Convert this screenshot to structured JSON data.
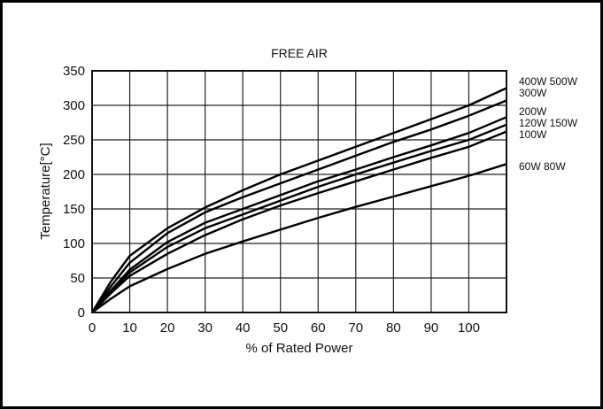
{
  "chart_data": {
    "type": "line",
    "title": "FREE AIR",
    "xlabel": "% of Rated Power",
    "ylabel": "Temperature[°C]",
    "xlim": [
      0,
      110
    ],
    "ylim": [
      0,
      350
    ],
    "x_ticks": [
      "0",
      "10",
      "20",
      "30",
      "40",
      "50",
      "60",
      "70",
      "80",
      "90",
      "100"
    ],
    "y_ticks": [
      "0",
      "50",
      "100",
      "150",
      "200",
      "250",
      "300",
      "350"
    ],
    "grid": true,
    "legend_placement": "right",
    "series": [
      {
        "name": "400W 500W",
        "x": [
          0,
          5,
          10,
          20,
          30,
          40,
          50,
          60,
          70,
          80,
          90,
          100,
          110
        ],
        "y": [
          0,
          45,
          82,
          122,
          152,
          177,
          200,
          220,
          240,
          260,
          280,
          300,
          325
        ]
      },
      {
        "name": "300W",
        "x": [
          0,
          5,
          10,
          20,
          30,
          40,
          50,
          60,
          70,
          80,
          90,
          100,
          110
        ],
        "y": [
          0,
          38,
          72,
          115,
          145,
          167,
          187,
          207,
          227,
          247,
          265,
          285,
          307
        ]
      },
      {
        "name": "200W",
        "x": [
          0,
          5,
          10,
          20,
          30,
          40,
          50,
          60,
          70,
          80,
          90,
          100,
          110
        ],
        "y": [
          0,
          32,
          62,
          102,
          130,
          150,
          170,
          190,
          207,
          225,
          242,
          260,
          283
        ]
      },
      {
        "name": "120W 150W",
        "x": [
          0,
          5,
          10,
          20,
          30,
          40,
          50,
          60,
          70,
          80,
          90,
          100,
          110
        ],
        "y": [
          0,
          30,
          58,
          95,
          122,
          142,
          162,
          182,
          200,
          217,
          234,
          250,
          272
        ]
      },
      {
        "name": "100W",
        "x": [
          0,
          5,
          10,
          20,
          30,
          40,
          50,
          60,
          70,
          80,
          90,
          100,
          110
        ],
        "y": [
          0,
          28,
          53,
          85,
          112,
          135,
          155,
          173,
          190,
          207,
          224,
          240,
          262
        ]
      },
      {
        "name": "60W 80W",
        "x": [
          0,
          5,
          10,
          20,
          30,
          40,
          50,
          60,
          70,
          80,
          90,
          100,
          110
        ],
        "y": [
          0,
          20,
          38,
          63,
          85,
          103,
          120,
          137,
          153,
          168,
          183,
          198,
          215
        ]
      }
    ]
  }
}
